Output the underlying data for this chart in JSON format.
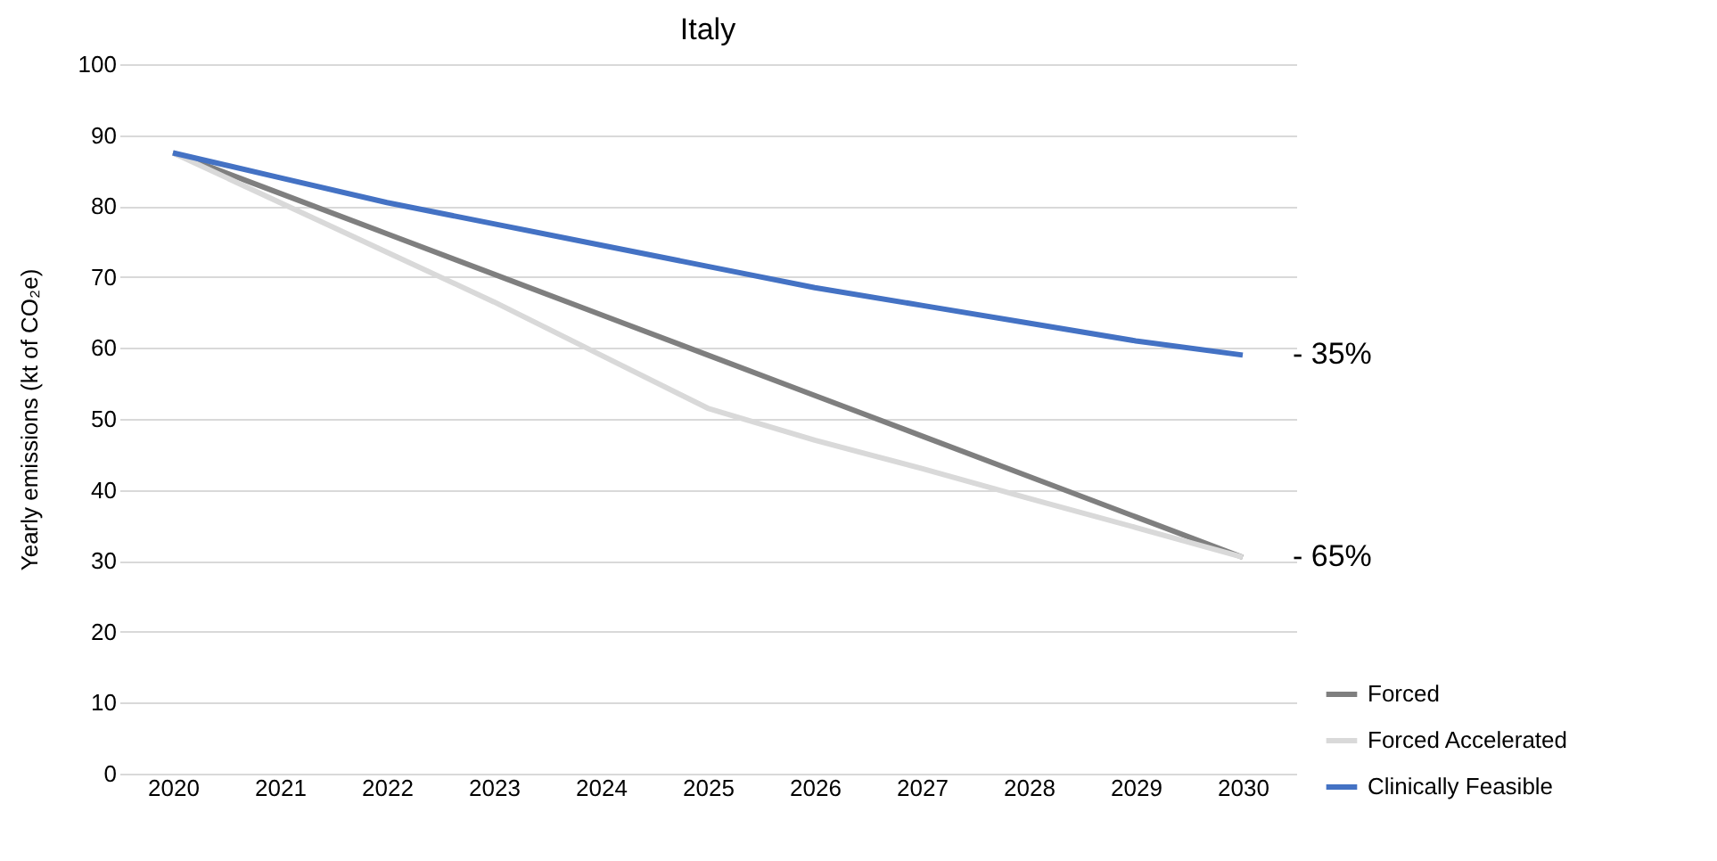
{
  "chart_data": {
    "type": "line",
    "title": "Italy",
    "ylabel": "Yearly emissions (kt of CO₂e)",
    "categories": [
      "2020",
      "2021",
      "2022",
      "2023",
      "2024",
      "2025",
      "2026",
      "2027",
      "2028",
      "2029",
      "2030"
    ],
    "series": [
      {
        "name": "Forced",
        "color": "#7f7f7f",
        "values": [
          87.5,
          81.8,
          76.1,
          70.4,
          64.7,
          59,
          53.3,
          47.6,
          41.9,
          36.2,
          30.5
        ]
      },
      {
        "name": "Forced Accelerated",
        "color": "#d9d9d9",
        "values": [
          87.5,
          80.5,
          73.5,
          66.5,
          59,
          51.5,
          47,
          43,
          38.8,
          34.7,
          30.5
        ]
      },
      {
        "name": "Clinically Feasible",
        "color": "#4472c4",
        "values": [
          87.5,
          84,
          80.5,
          77.5,
          74.5,
          71.5,
          68.5,
          66,
          63.5,
          61,
          59
        ]
      }
    ],
    "annotations": [
      {
        "text": "- 35%",
        "x": "2030",
        "y": 59
      },
      {
        "text": "- 65%",
        "x": "2030",
        "y": 30.5
      }
    ],
    "ylim": [
      0,
      100
    ],
    "yticks": [
      0,
      10,
      20,
      30,
      40,
      50,
      60,
      70,
      80,
      90,
      100
    ],
    "grid": "y",
    "legend": "bottom right",
    "marker": "none",
    "line_style": "solid"
  }
}
